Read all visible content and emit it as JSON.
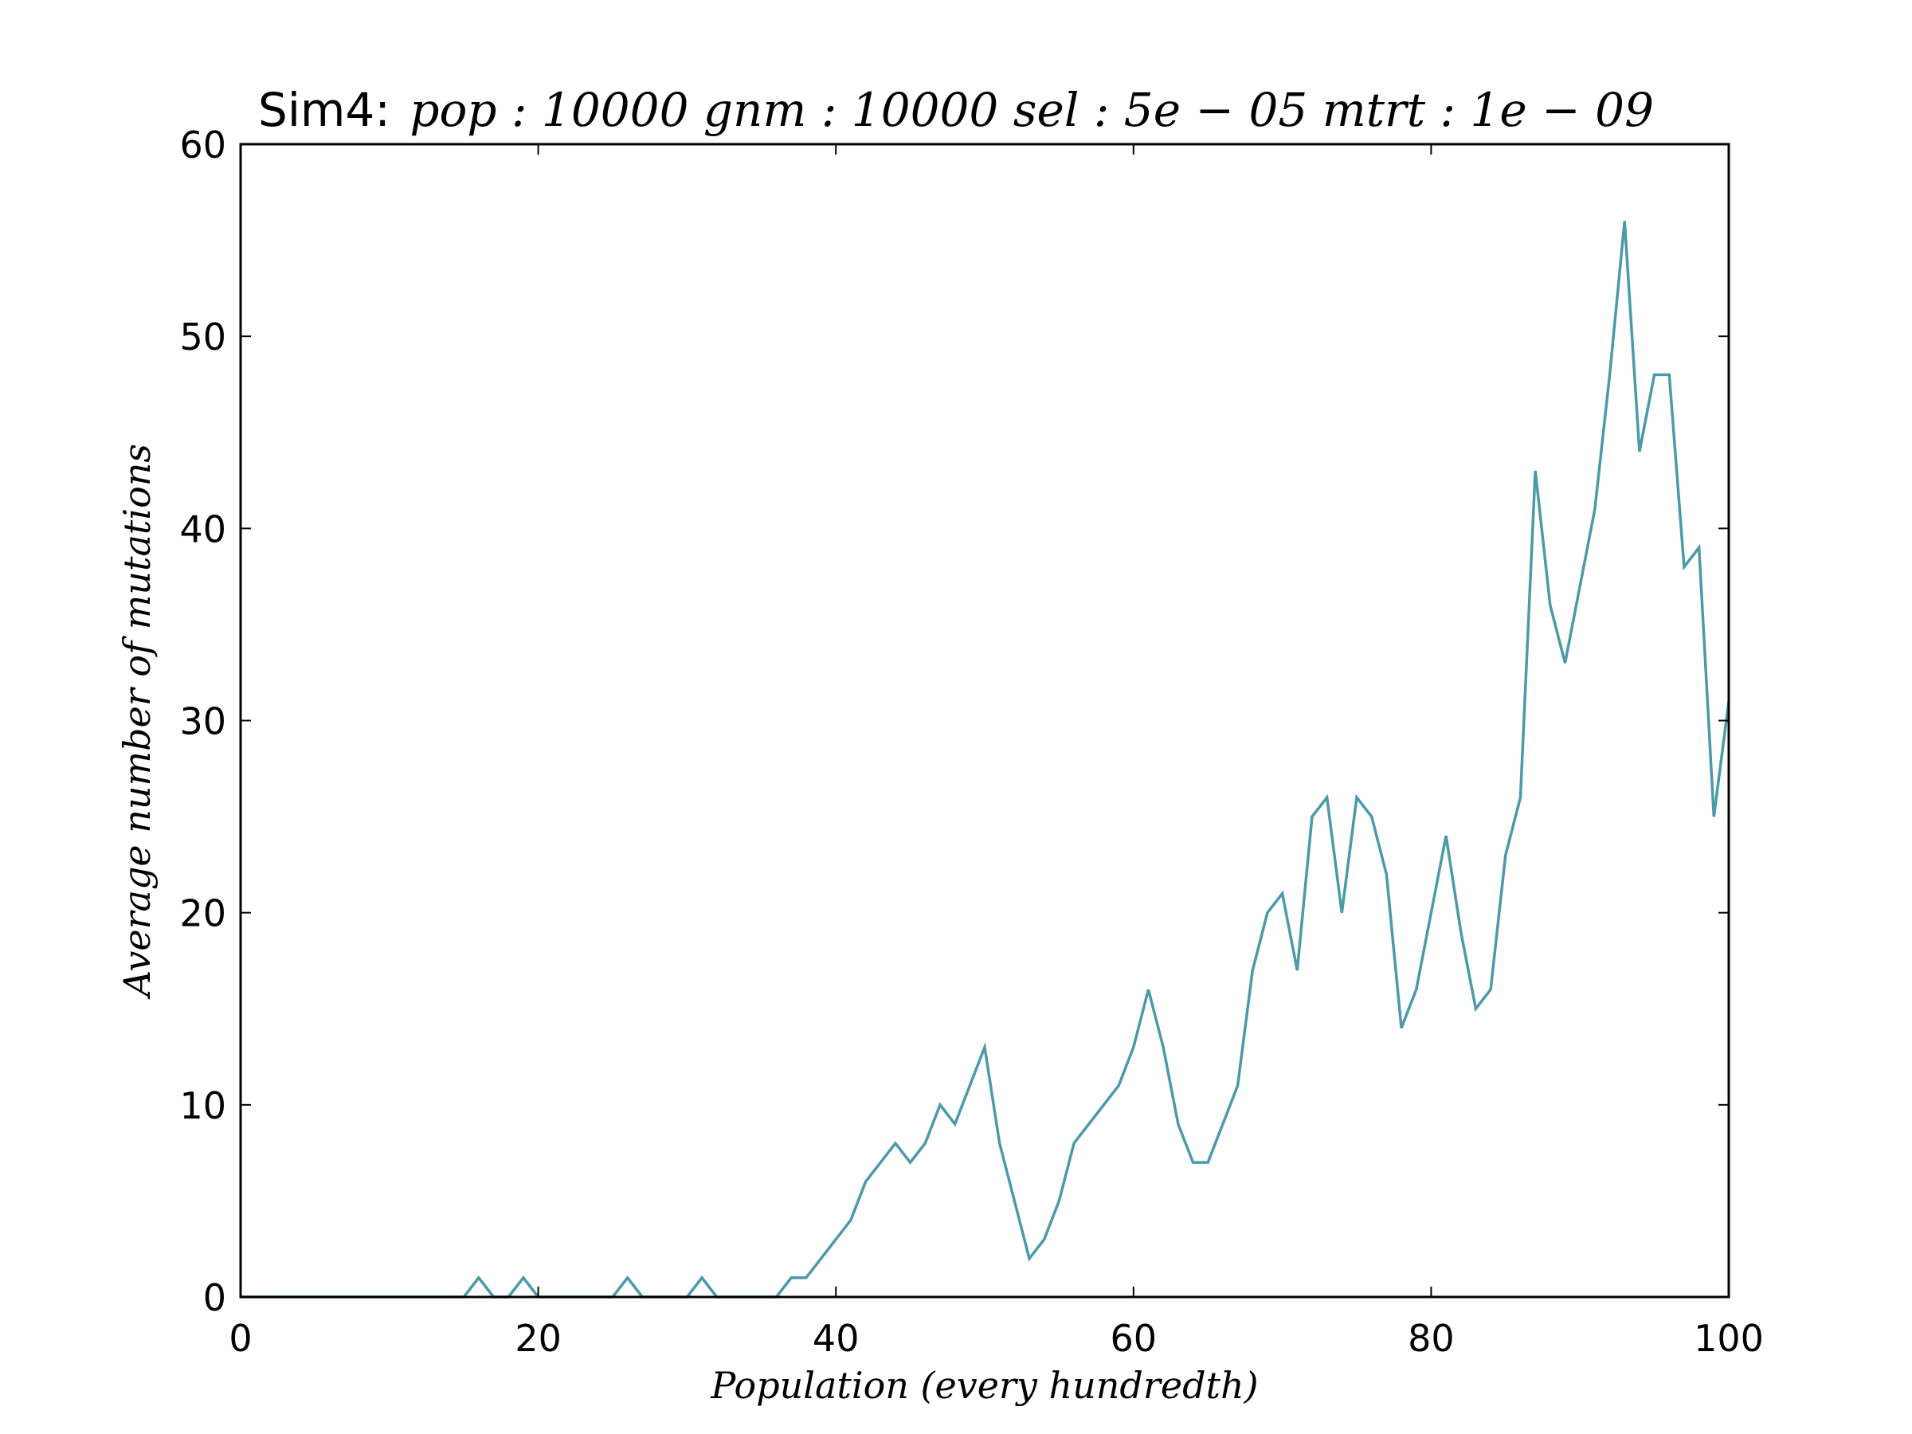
{
  "chart_data": {
    "type": "line",
    "title_prefix": "Sim4:",
    "title_math": "pop : 10000  gnm : 10000  sel : 5e − 05  mtrt : 1e − 09",
    "xlabel": "Population (every hundredth)",
    "ylabel": "Average number of mutations",
    "xlim": [
      0,
      100
    ],
    "ylim": [
      0,
      60
    ],
    "xticks": [
      0,
      20,
      40,
      60,
      80,
      100
    ],
    "yticks": [
      0,
      10,
      20,
      30,
      40,
      50,
      60
    ],
    "grid": false,
    "line_color": "#4a9aaa",
    "series": [
      {
        "x": [
          0,
          1,
          2,
          3,
          4,
          5,
          6,
          7,
          8,
          9,
          10,
          11,
          12,
          13,
          14,
          15,
          16,
          17,
          18,
          19,
          20,
          21,
          22,
          23,
          24,
          25,
          26,
          27,
          28,
          29,
          30,
          31,
          32,
          33,
          34,
          35,
          36,
          37,
          38,
          39,
          40,
          41,
          42,
          43,
          44,
          45,
          46,
          47,
          48,
          49,
          50,
          51,
          52,
          53,
          54,
          55,
          56,
          57,
          58,
          59,
          60,
          61,
          62,
          63,
          64,
          65,
          66,
          67,
          68,
          69,
          70,
          71,
          72,
          73,
          74,
          75,
          76,
          77,
          78,
          79,
          80,
          81,
          82,
          83,
          84,
          85,
          86,
          87,
          88,
          89,
          90,
          91,
          92,
          93,
          94,
          95,
          96,
          97,
          98,
          99,
          100
        ],
        "values": [
          0,
          0,
          0,
          0,
          0,
          0,
          0,
          0,
          0,
          0,
          0,
          0,
          0,
          0,
          0,
          0,
          1,
          0,
          0,
          1,
          0,
          0,
          0,
          0,
          0,
          0,
          1,
          0,
          0,
          0,
          0,
          1,
          0,
          0,
          0,
          0,
          0,
          1,
          1,
          2,
          3,
          4,
          6,
          7,
          8,
          7,
          8,
          10,
          9,
          11,
          13,
          8,
          5,
          2,
          3,
          5,
          8,
          9,
          10,
          11,
          13,
          16,
          13,
          9,
          7,
          7,
          9,
          11,
          17,
          20,
          21,
          17,
          25,
          26,
          20,
          26,
          25,
          22,
          14,
          16,
          20,
          24,
          19,
          15,
          16,
          23,
          26,
          43,
          36,
          33,
          37,
          41,
          48,
          56,
          44,
          48,
          48,
          38,
          39,
          25,
          31
        ]
      }
    ]
  }
}
